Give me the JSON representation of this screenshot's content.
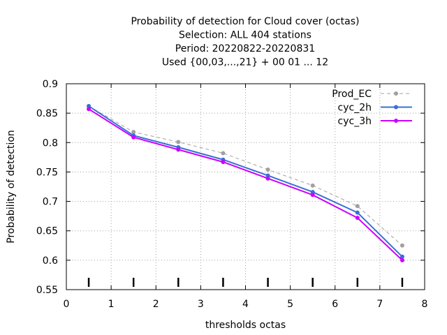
{
  "chart_data": {
    "type": "line",
    "title": [
      "Probability of detection  for Cloud cover (octas)",
      "Selection: ALL    404 stations",
      "Period: 20220822-20220831",
      "Used {00,03,...,21} + 00 01 ... 12"
    ],
    "xlabel": "thresholds octas",
    "ylabel": "Probability of detection",
    "xlim": [
      0,
      8
    ],
    "ylim": [
      0.55,
      0.9
    ],
    "xticks": [
      "0",
      "1",
      "2",
      "3",
      "4",
      "5",
      "6",
      "7",
      "8"
    ],
    "yticks": [
      "0.55",
      "0.6",
      "0.65",
      "0.7",
      "0.75",
      "0.8",
      "0.85",
      "0.9"
    ],
    "grid": true,
    "legend_position": "top-right",
    "x": [
      0.5,
      1.5,
      2.5,
      3.5,
      4.5,
      5.5,
      6.5,
      7.5
    ],
    "series": [
      {
        "name": "Prod_EC",
        "color": "#a0a0a0",
        "style": "dashed",
        "values": [
          0.862,
          0.818,
          0.801,
          0.782,
          0.754,
          0.727,
          0.692,
          0.625
        ]
      },
      {
        "name": "cyc_2h",
        "color": "#3a6fd8",
        "style": "solid",
        "values": [
          0.862,
          0.812,
          0.792,
          0.771,
          0.744,
          0.716,
          0.681,
          0.606
        ]
      },
      {
        "name": "cyc_3h",
        "color": "#cc00ff",
        "style": "solid",
        "values": [
          0.857,
          0.809,
          0.788,
          0.767,
          0.739,
          0.711,
          0.672,
          0.6
        ]
      }
    ],
    "bar_markers_x": [
      0.5,
      1.5,
      2.5,
      3.5,
      4.5,
      5.5,
      6.5,
      7.5
    ]
  }
}
